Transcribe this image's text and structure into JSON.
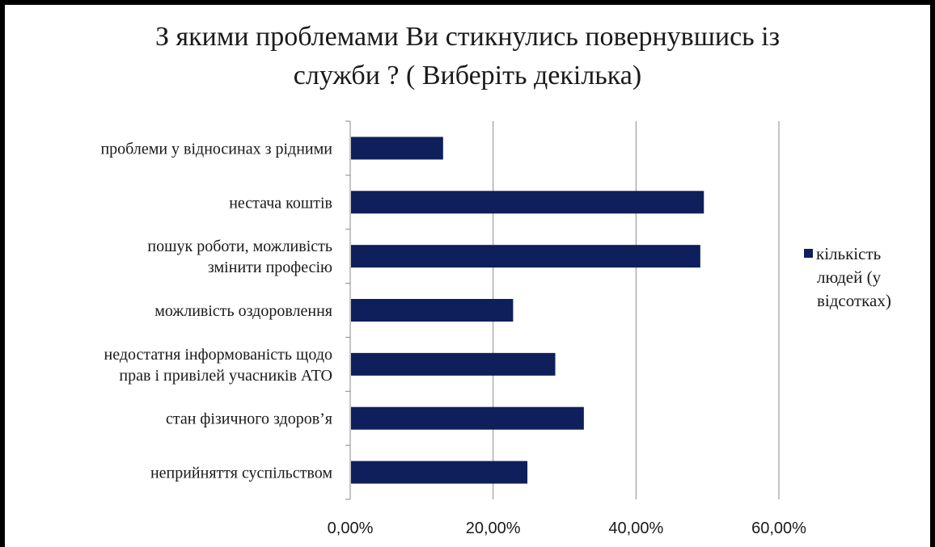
{
  "chart_data": {
    "type": "bar",
    "orientation": "horizontal",
    "title": "З якими проблемами Ви стикнулись повернувшись із служби ? ( Виберіть декілька)",
    "title_lines": [
      "З якими проблемами Ви стикнулись повернувшись із",
      "служби ? ( Виберіть декілька)"
    ],
    "categories": [
      [
        "проблеми у відносинах з рідними"
      ],
      [
        "нестача коштів"
      ],
      [
        "пошук роботи, можливість",
        "змінити професію"
      ],
      [
        "можливість оздоровлення"
      ],
      [
        "недостатня інформованість щодо",
        "прав і привілей учасників АТО"
      ],
      [
        "стан фізичного здоров’я"
      ],
      [
        "неприйняття суспільством"
      ]
    ],
    "series": [
      {
        "name": "кількість людей (у відсотках)",
        "values": [
          0.13,
          0.495,
          0.49,
          0.228,
          0.287,
          0.327,
          0.248
        ]
      }
    ],
    "xlim": [
      0,
      0.6
    ],
    "xticks": [
      0,
      0.2,
      0.4,
      0.6
    ],
    "xtick_labels": [
      "0,00%",
      "20,00%",
      "40,00%",
      "60,00%"
    ],
    "xlabel": "",
    "ylabel": "",
    "grid": "vertical",
    "legend_position": "right",
    "bar_color": "#0f1f5c"
  },
  "legend": {
    "lines": [
      "кількість",
      "людей (у",
      "відсотках)"
    ]
  }
}
